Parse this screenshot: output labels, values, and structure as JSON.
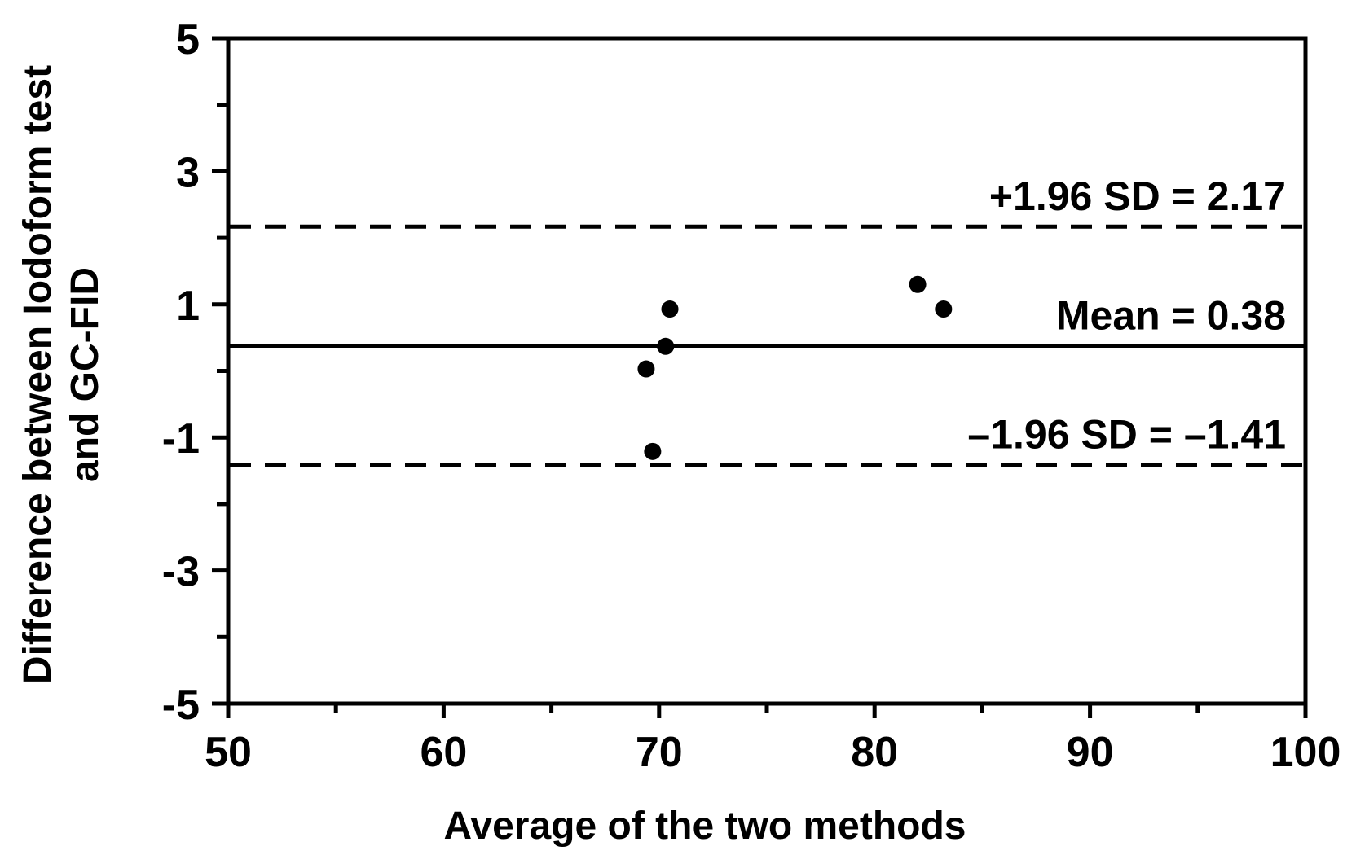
{
  "figure": {
    "background_color": "#ffffff",
    "ink_color": "#000000"
  },
  "chart_data": {
    "type": "scatter",
    "title": "",
    "xlabel": "Average of the two methods",
    "ylabel_line1": "Difference between Iodoform test",
    "ylabel_line2": "and GC-FID",
    "xlim": [
      50,
      100
    ],
    "ylim": [
      -5,
      5
    ],
    "x_major_ticks": [
      50,
      60,
      70,
      80,
      90,
      100
    ],
    "x_minor_ticks": [
      55,
      65,
      75,
      85,
      95
    ],
    "y_major_ticks": [
      5,
      3,
      1,
      -1,
      -3,
      -5
    ],
    "y_minor_ticks": [
      4,
      2,
      0,
      -2,
      -4
    ],
    "grid": false,
    "legend": "none",
    "marker": {
      "shape": "circle",
      "color": "#000000",
      "radius_px": 10.5
    },
    "points": [
      {
        "x": 70.5,
        "y": 0.93
      },
      {
        "x": 70.3,
        "y": 0.37
      },
      {
        "x": 69.4,
        "y": 0.03
      },
      {
        "x": 69.7,
        "y": -1.21
      },
      {
        "x": 82.0,
        "y": 1.3
      },
      {
        "x": 83.2,
        "y": 0.93
      }
    ],
    "reference_lines": [
      {
        "value": 2.17,
        "style": "dashed",
        "label": "+1.96 SD = 2.17"
      },
      {
        "value": 0.38,
        "style": "solid",
        "label": "Mean = 0.38"
      },
      {
        "value": -1.41,
        "style": "dashed",
        "label": "–1.96 SD = –1.41"
      }
    ]
  }
}
